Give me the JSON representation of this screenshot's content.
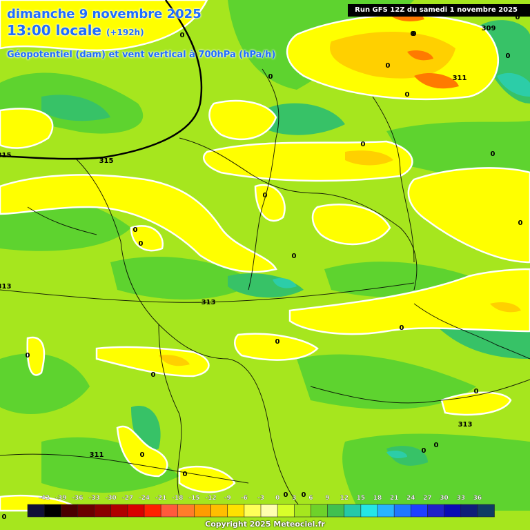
{
  "header": {
    "date": "dimanche 9 novembre 2025",
    "time": "13:00 locale",
    "lead": "(+192h)",
    "parameter": "Géopotentiel (dam) et vent vertical à 700hPa (hPa/h)"
  },
  "run_info": "Run GFS 12Z du samedi 1 novembre 2025",
  "copyright": "Copyright 2025 Meteociel.fr",
  "field_colors": {
    "background_near_zero": "#a6e61e",
    "weak_ascent": "#5ed32f",
    "ascent": "#37c267",
    "strong_ascent": "#2ccda8",
    "weak_descent": "#ffff00",
    "descent": "#ffd000",
    "strong_descent": "#ff7a00",
    "contour_vertical_velocity": "#ffffff",
    "contour_geopotential": "#000000"
  },
  "geopotential_labels": [
    "309",
    "311",
    "315",
    "315",
    "313",
    "313",
    "313",
    "311"
  ],
  "vertical_velocity_labels": [
    "0",
    "0",
    "0",
    "0",
    "0",
    "0",
    "0",
    "0",
    "0",
    "0",
    "0",
    "0",
    "0",
    "0",
    "0",
    "0",
    "0",
    "0",
    "0",
    "0",
    "0",
    "0",
    "0",
    "0",
    "0",
    "0",
    "0"
  ],
  "legend": {
    "ticks": [
      "-42",
      "-39",
      "-36",
      "-33",
      "-30",
      "-27",
      "-24",
      "-21",
      "-18",
      "-15",
      "-12",
      "-9",
      "-6",
      "-3",
      "0",
      "3",
      "6",
      "9",
      "12",
      "15",
      "18",
      "21",
      "24",
      "27",
      "30",
      "33",
      "36"
    ],
    "colors": [
      "#101038",
      "#000000",
      "#4a0000",
      "#6a0000",
      "#8a0000",
      "#b00000",
      "#d80000",
      "#ff2000",
      "#ff5a3c",
      "#ff7d2a",
      "#ff9c00",
      "#ffbe00",
      "#ffe100",
      "#ffff59",
      "#ffffb0",
      "#d8ff2a",
      "#a6e61e",
      "#6ed22a",
      "#40c050",
      "#25c9a8",
      "#25e6e6",
      "#28b4ff",
      "#1f78ff",
      "#1f3fff",
      "#2020c8",
      "#0a0ab4",
      "#0f1e78",
      "#0f3c64"
    ]
  }
}
